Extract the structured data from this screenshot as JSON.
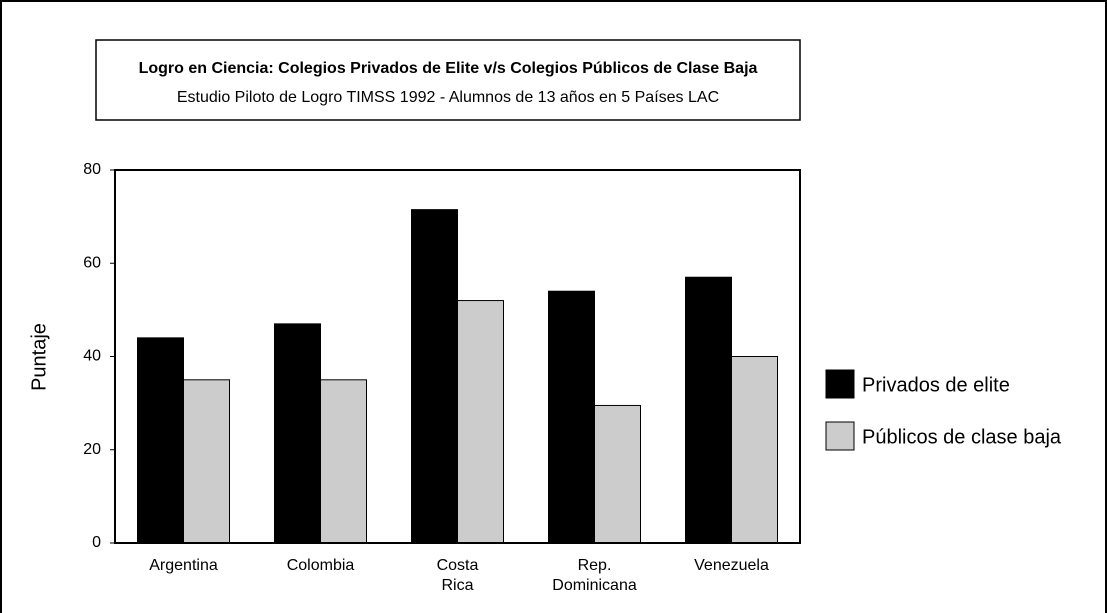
{
  "chart_data": {
    "type": "bar",
    "title": "Logro en Ciencia: Colegios Privados de Elite v/s Colegios Públicos de Clase Baja",
    "subtitle": "Estudio Piloto de Logro TIMSS 1992 - Alumnos de 13 años en 5 Países LAC",
    "y_label": "Puntaje",
    "categories": [
      "Argentina",
      "Colombia",
      "Costa Rica",
      "Rep. Dominicana",
      "Venezuela"
    ],
    "series": [
      {
        "name": "Privados de elite",
        "color": "#000000",
        "values": [
          44,
          47,
          71.5,
          54,
          57
        ]
      },
      {
        "name": "Públicos de clase baja",
        "color": "#cccccc",
        "values": [
          35,
          35,
          52,
          29.5,
          40
        ]
      }
    ],
    "ylim": [
      0,
      80
    ],
    "yticks": [
      0,
      20,
      40,
      60,
      80
    ],
    "legend": "right"
  }
}
